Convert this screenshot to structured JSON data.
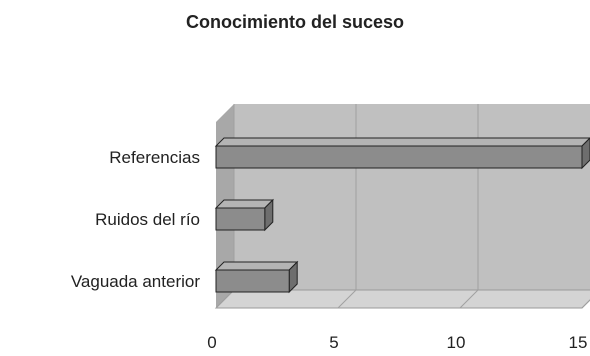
{
  "chart_data": {
    "type": "bar",
    "orientation": "horizontal",
    "title": "Conocimiento del suceso",
    "categories": [
      "Referencias",
      "Ruidos del río",
      "Vaguada anterior"
    ],
    "values": [
      15,
      2,
      3
    ],
    "xlim": [
      0,
      15
    ],
    "xticks": [
      "0",
      "5",
      "10",
      "15"
    ],
    "xlabel": "",
    "ylabel": "",
    "grid": true,
    "style": "3d",
    "colors": {
      "bar": "#8c8c8c",
      "bar_top": "#b4b4b4",
      "bar_side": "#6e6e6e",
      "plot_back": "#c0c0c0",
      "plot_floor": "#d4d4d4",
      "plot_wall": "#a8a8a8"
    }
  }
}
